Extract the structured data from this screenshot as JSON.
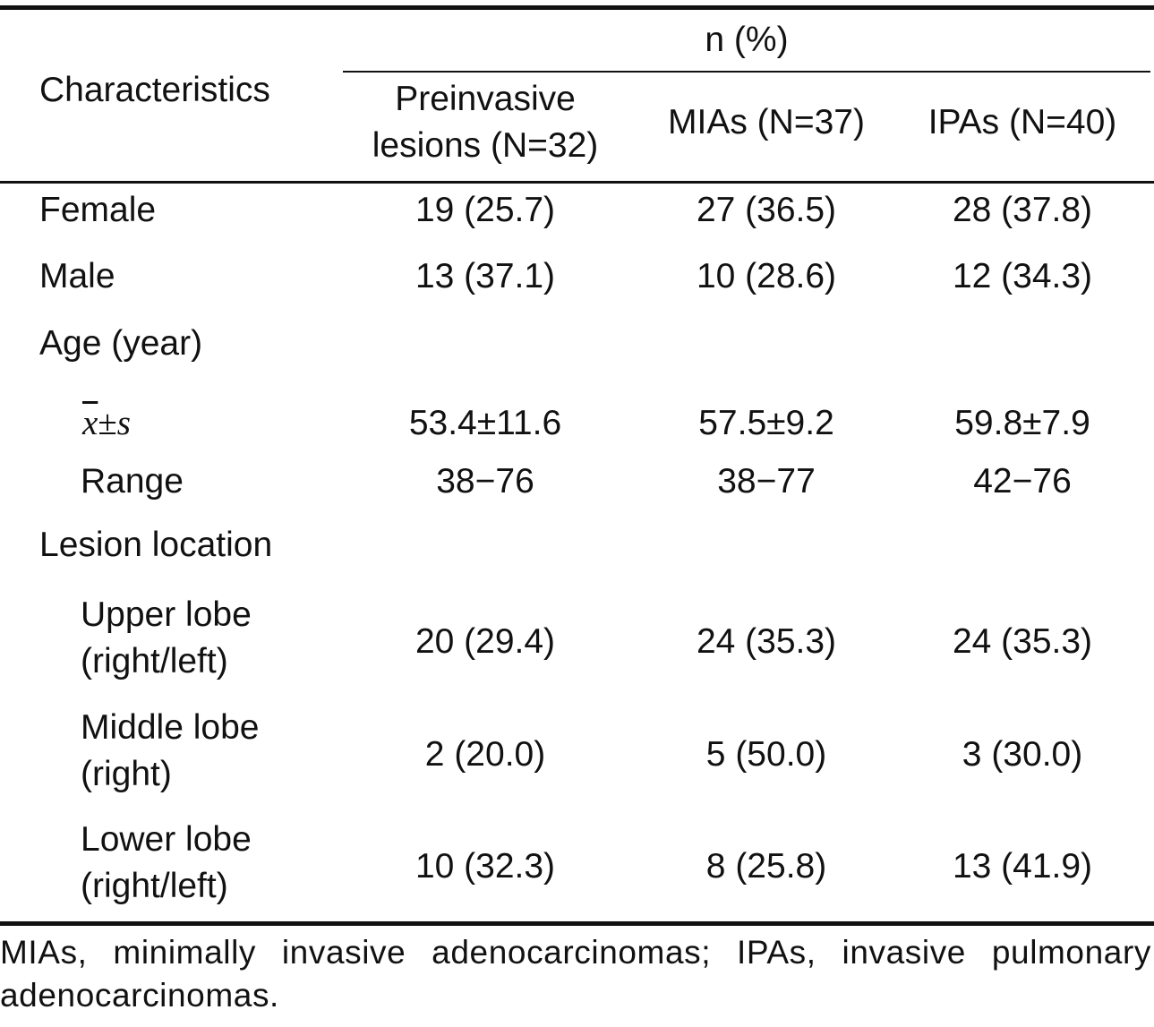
{
  "header": {
    "characteristics": "Characteristics",
    "n_percent": "n (%)",
    "columns": [
      "Preinvasive",
      "lesions (N=32)",
      "MIAs (N=37)",
      "IPAs (N=40)"
    ]
  },
  "rows": {
    "female": {
      "label": "Female",
      "values": [
        "19 (25.7)",
        "27 (36.5)",
        "28 (37.8)"
      ]
    },
    "male": {
      "label": "Male",
      "values": [
        "13 (37.1)",
        "10 (28.6)",
        "12 (34.3)"
      ]
    },
    "age": {
      "label": "Age (year)"
    },
    "mean_sd": {
      "label_x": "x",
      "label_pm": "±",
      "label_s": "s",
      "values": [
        "53.4±11.6",
        "57.5±9.2",
        "59.8±7.9"
      ]
    },
    "range": {
      "label": "Range",
      "values": [
        "38−76",
        "38−77",
        "42−76"
      ]
    },
    "location": {
      "label": "Lesion location"
    },
    "upper": {
      "label1": "Upper lobe",
      "label2": "(right/left)",
      "values": [
        "20 (29.4)",
        "24 (35.3)",
        "24 (35.3)"
      ]
    },
    "middle": {
      "label1": "Middle lobe",
      "label2": "(right)",
      "values": [
        "2 (20.0)",
        "5 (50.0)",
        "3 (30.0)"
      ]
    },
    "lower": {
      "label1": "Lower lobe",
      "label2": "(right/left)",
      "values": [
        "10 (32.3)",
        "8 (25.8)",
        "13 (41.9)"
      ]
    }
  },
  "footnote": "MIAs, minimally invasive adenocarcinomas; IPAs, invasive pulmonary adenocarcinomas."
}
